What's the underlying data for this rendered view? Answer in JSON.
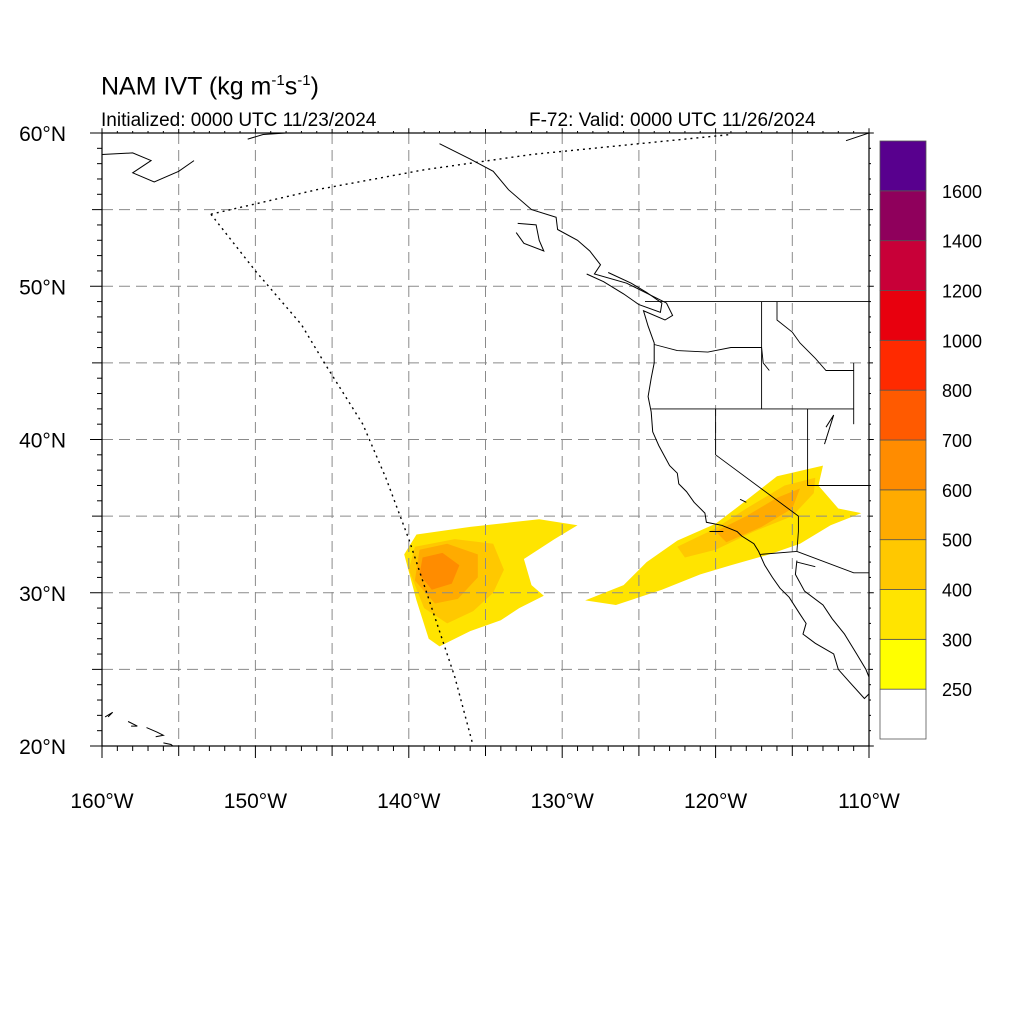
{
  "header": {
    "title_prefix": "NAM IVT (kg m",
    "title_sup1": "-1",
    "title_mid": "s",
    "title_sup2": "-1",
    "title_suffix": ")",
    "initialized": "Initialized: 0000 UTC 11/23/2024",
    "valid": "F-72: Valid: 0000 UTC 11/26/2024"
  },
  "map": {
    "lon_range": [
      -160,
      -110
    ],
    "lat_range": [
      20,
      60
    ],
    "lon_tick_labels": [
      {
        "lon": -160,
        "label": "160°W"
      },
      {
        "lon": -150,
        "label": "150°W"
      },
      {
        "lon": -140,
        "label": "140°W"
      },
      {
        "lon": -130,
        "label": "130°W"
      },
      {
        "lon": -120,
        "label": "120°W"
      },
      {
        "lon": -110,
        "label": "110°W"
      }
    ],
    "lat_tick_labels": [
      {
        "lat": 60,
        "label": "60°N"
      },
      {
        "lat": 50,
        "label": "50°N"
      },
      {
        "lat": 40,
        "label": "40°N"
      },
      {
        "lat": 30,
        "label": "30°N"
      },
      {
        "lat": 20,
        "label": "20°N"
      }
    ],
    "grid_lons": [
      -155,
      -150,
      -145,
      -140,
      -135,
      -130,
      -125,
      -120,
      -115
    ],
    "grid_lats": [
      25,
      30,
      35,
      40,
      45,
      50,
      55
    ],
    "domain_boundary": [
      [
        -152.9,
        54.7
      ],
      [
        -150,
        51
      ],
      [
        -147,
        47.5
      ],
      [
        -145.5,
        45
      ],
      [
        -143,
        41
      ],
      [
        -141.5,
        37.5
      ],
      [
        -140,
        33.5
      ],
      [
        -138.5,
        29
      ],
      [
        -137,
        24.5
      ],
      [
        -135.8,
        20
      ]
    ],
    "domain_top": [
      [
        -152.9,
        54.7
      ],
      [
        -146,
        56.3
      ],
      [
        -139,
        57.6
      ],
      [
        -132,
        58.6
      ],
      [
        -124,
        59.4
      ],
      [
        -119,
        59.9
      ]
    ]
  },
  "ivt_field": {
    "units": "kg m-1 s-1",
    "regions": [
      {
        "level": 300,
        "polygon": [
          [
            -139.5,
            33.8
          ],
          [
            -136,
            34.3
          ],
          [
            -131.5,
            34.8
          ],
          [
            -129,
            34.4
          ],
          [
            -130.5,
            33.5
          ],
          [
            -132.5,
            32.2
          ],
          [
            -132,
            30.5
          ],
          [
            -131.2,
            29.8
          ],
          [
            -132.8,
            29
          ],
          [
            -134,
            28.2
          ],
          [
            -136,
            27.5
          ],
          [
            -138,
            26.5
          ],
          [
            -138.7,
            27
          ],
          [
            -139.5,
            29.5
          ],
          [
            -140.3,
            32.5
          ]
        ]
      },
      {
        "level": 300,
        "polygon": [
          [
            -128.5,
            29.5
          ],
          [
            -126,
            30.5
          ],
          [
            -124.5,
            32
          ],
          [
            -122.5,
            33.4
          ],
          [
            -120,
            34.5
          ],
          [
            -118.3,
            35.8
          ],
          [
            -116,
            37.6
          ],
          [
            -113,
            38.3
          ],
          [
            -113.3,
            37
          ],
          [
            -112,
            35.5
          ],
          [
            -110.5,
            35.2
          ],
          [
            -112.5,
            34.4
          ],
          [
            -114.5,
            33.2
          ],
          [
            -116.5,
            32.5
          ],
          [
            -119,
            31.8
          ],
          [
            -121,
            31.2
          ],
          [
            -123.5,
            30.2
          ],
          [
            -126.5,
            29.2
          ]
        ]
      },
      {
        "level": 400,
        "polygon": [
          [
            -139.6,
            33
          ],
          [
            -137,
            33.5
          ],
          [
            -134.5,
            33.2
          ],
          [
            -133.8,
            31.5
          ],
          [
            -134.5,
            30
          ],
          [
            -135.8,
            28.8
          ],
          [
            -137.5,
            28
          ],
          [
            -139,
            29
          ],
          [
            -140,
            31.5
          ]
        ]
      },
      {
        "level": 400,
        "polygon": [
          [
            -122.5,
            33
          ],
          [
            -120,
            34.2
          ],
          [
            -118,
            35.5
          ],
          [
            -115.5,
            37
          ],
          [
            -113.5,
            37.5
          ],
          [
            -113.6,
            36.5
          ],
          [
            -115,
            35
          ],
          [
            -117.5,
            34
          ],
          [
            -120,
            32.8
          ],
          [
            -122,
            32.3
          ]
        ]
      },
      {
        "level": 500,
        "polygon": [
          [
            -139.3,
            32.8
          ],
          [
            -137.5,
            33.2
          ],
          [
            -135.5,
            32.5
          ],
          [
            -135.5,
            31
          ],
          [
            -136.8,
            29.6
          ],
          [
            -138.3,
            29.3
          ],
          [
            -139.6,
            30.8
          ]
        ]
      },
      {
        "level": 500,
        "polygon": [
          [
            -120,
            34
          ],
          [
            -118,
            35
          ],
          [
            -116,
            36.2
          ],
          [
            -114.5,
            36.8
          ],
          [
            -115,
            35.5
          ],
          [
            -117,
            34.3
          ],
          [
            -119.3,
            33.3
          ]
        ]
      },
      {
        "level": 600,
        "polygon": [
          [
            -139.1,
            32.3
          ],
          [
            -137.8,
            32.6
          ],
          [
            -136.7,
            31.8
          ],
          [
            -137.2,
            30.6
          ],
          [
            -138.5,
            30.2
          ],
          [
            -139.3,
            31.2
          ]
        ]
      }
    ]
  },
  "colorbar": {
    "levels": [
      250,
      300,
      400,
      500,
      600,
      700,
      800,
      1000,
      1200,
      1400,
      1600
    ],
    "labels": [
      "250",
      "300",
      "400",
      "500",
      "600",
      "700",
      "800",
      "1000",
      "1200",
      "1400",
      "1600"
    ],
    "colors": [
      "#ffffff",
      "#ffff00",
      "#ffe400",
      "#ffc800",
      "#ffab00",
      "#ff8c00",
      "#ff5a00",
      "#ff2a00",
      "#e8000e",
      "#c80038",
      "#8f005c",
      "#58008e"
    ]
  },
  "state_lines": [
    [
      [
        -124.6,
        49.0
      ],
      [
        -117.0,
        49.0
      ],
      [
        -110.0,
        49.0
      ]
    ],
    [
      [
        -124.0,
        46.2
      ],
      [
        -122.5,
        45.8
      ],
      [
        -120.5,
        45.7
      ],
      [
        -119.0,
        46.0
      ],
      [
        -117.0,
        46.0
      ],
      [
        -116.9,
        45.0
      ],
      [
        -116.5,
        44.5
      ]
    ],
    [
      [
        -117.0,
        49.0
      ],
      [
        -117.0,
        46.0
      ]
    ],
    [
      [
        -116.0,
        49.0
      ],
      [
        -116.0,
        47.8
      ],
      [
        -115.0,
        47.0
      ],
      [
        -114.5,
        46.3
      ],
      [
        -113.5,
        45.3
      ],
      [
        -112.8,
        44.5
      ],
      [
        -111.0,
        44.5
      ]
    ],
    [
      [
        -124.2,
        42.0
      ],
      [
        -120.0,
        42.0
      ],
      [
        -117.0,
        42.0
      ],
      [
        -111.0,
        42.0
      ]
    ],
    [
      [
        -120.0,
        42.0
      ],
      [
        -120.0,
        39.0
      ],
      [
        -114.6,
        35.0
      ],
      [
        -114.6,
        34.0
      ],
      [
        -114.7,
        32.7
      ]
    ],
    [
      [
        -117.0,
        46.0
      ],
      [
        -117.0,
        42.0
      ]
    ],
    [
      [
        -114.0,
        42.0
      ],
      [
        -114.0,
        37.0
      ],
      [
        -110.0,
        37.0
      ]
    ],
    [
      [
        -111.0,
        45.0
      ],
      [
        -111.0,
        41.0
      ]
    ],
    [
      [
        -114.7,
        32.7
      ],
      [
        -111.0,
        31.3
      ],
      [
        -110.0,
        31.3
      ]
    ],
    [
      [
        -117.1,
        32.5
      ],
      [
        -114.7,
        32.7
      ]
    ],
    [
      [
        -114.7,
        32.0
      ],
      [
        -113.5,
        31.7
      ]
    ]
  ],
  "coastlines": [
    [
      [
        -138,
        59.3
      ],
      [
        -136,
        58.3
      ],
      [
        -134.5,
        57.5
      ],
      [
        -133.5,
        56.3
      ],
      [
        -132,
        55
      ],
      [
        -130.4,
        54.5
      ],
      [
        -130.3,
        53.7
      ],
      [
        -129,
        53
      ],
      [
        -128.2,
        52.3
      ],
      [
        -127.5,
        51.4
      ],
      [
        -127.9,
        50.8
      ],
      [
        -125.8,
        50.2
      ],
      [
        -124.2,
        49.4
      ],
      [
        -123.2,
        48.9
      ],
      [
        -122.8,
        48.1
      ],
      [
        -123.3,
        47.8
      ],
      [
        -124.7,
        48.4
      ],
      [
        -124.4,
        47.4
      ],
      [
        -124,
        46.3
      ],
      [
        -124,
        45
      ],
      [
        -124.2,
        44
      ],
      [
        -124.4,
        42.8
      ],
      [
        -124.2,
        41.8
      ],
      [
        -124.1,
        40.5
      ],
      [
        -123.7,
        39.6
      ],
      [
        -123,
        38.3
      ],
      [
        -122.5,
        37.8
      ],
      [
        -122.4,
        37.1
      ],
      [
        -121.9,
        36.6
      ],
      [
        -121.4,
        35.9
      ],
      [
        -120.7,
        35.2
      ],
      [
        -120.6,
        34.6
      ],
      [
        -119.6,
        34.4
      ],
      [
        -118.6,
        34
      ],
      [
        -118.3,
        33.7
      ],
      [
        -117.5,
        33.2
      ],
      [
        -117.2,
        32.7
      ],
      [
        -116.8,
        31.8
      ],
      [
        -116.3,
        31
      ],
      [
        -115.8,
        30.3
      ],
      [
        -115.2,
        29.7
      ],
      [
        -114.5,
        28.6
      ],
      [
        -114.1,
        28
      ],
      [
        -114.3,
        27.3
      ],
      [
        -113.5,
        26.7
      ],
      [
        -112.3,
        26
      ],
      [
        -112,
        25
      ],
      [
        -111.3,
        24.2
      ],
      [
        -110.3,
        23.1
      ],
      [
        -110,
        23.4
      ]
    ],
    [
      [
        -128.4,
        50.8
      ],
      [
        -127.3,
        50.3
      ],
      [
        -126,
        49.5
      ],
      [
        -125,
        48.8
      ],
      [
        -123.6,
        48.3
      ],
      [
        -123.5,
        48.9
      ],
      [
        -124.5,
        49.6
      ],
      [
        -125.5,
        50.2
      ],
      [
        -127,
        50.9
      ]
    ],
    [
      [
        -132.9,
        54.1
      ],
      [
        -131.7,
        54
      ],
      [
        -131.5,
        53
      ],
      [
        -131.2,
        52.3
      ],
      [
        -132.5,
        52.8
      ],
      [
        -133,
        53.5
      ]
    ],
    [
      [
        -114.7,
        32.1
      ],
      [
        -114.8,
        31.2
      ],
      [
        -114.2,
        30.1
      ],
      [
        -113,
        29.2
      ],
      [
        -112.4,
        28.3
      ],
      [
        -111.6,
        27.3
      ],
      [
        -110.8,
        26
      ],
      [
        -110.2,
        25
      ],
      [
        -110,
        24.5
      ]
    ],
    [
      [
        -159.8,
        21.9
      ],
      [
        -159.3,
        22.2
      ],
      [
        -159.6,
        21.9
      ]
    ],
    [
      [
        -158.3,
        21.6
      ],
      [
        -157.7,
        21.3
      ],
      [
        -158.1,
        21.3
      ]
    ],
    [
      [
        -157.1,
        21.2
      ],
      [
        -156.4,
        20.9
      ],
      [
        -156.0,
        20.7
      ],
      [
        -156.5,
        20.6
      ]
    ],
    [
      [
        -156.0,
        20.2
      ],
      [
        -155.5,
        20.1
      ],
      [
        -154.9,
        19.6
      ],
      [
        -155.5,
        19.3
      ]
    ],
    [
      [
        -160,
        58.6
      ],
      [
        -158,
        58.7
      ],
      [
        -156.8,
        58.2
      ],
      [
        -158,
        57.4
      ],
      [
        -156.6,
        56.8
      ],
      [
        -155,
        57.5
      ],
      [
        -154,
        58.2
      ]
    ],
    [
      [
        -150.5,
        59.6
      ],
      [
        -149.5,
        59.9
      ],
      [
        -148,
        60
      ],
      [
        -146.4,
        60.4
      ]
    ],
    [
      [
        -111.5,
        59.5
      ],
      [
        -110,
        60
      ]
    ],
    [
      [
        -112.9,
        39.7
      ],
      [
        -112.3,
        41.6
      ],
      [
        -112.8,
        40.8
      ]
    ],
    [
      [
        -118.4,
        36.1
      ],
      [
        -118,
        35.9
      ]
    ],
    [
      [
        -119.5,
        34.0
      ],
      [
        -119.9,
        34.0
      ],
      [
        -120.4,
        34.0
      ]
    ]
  ]
}
